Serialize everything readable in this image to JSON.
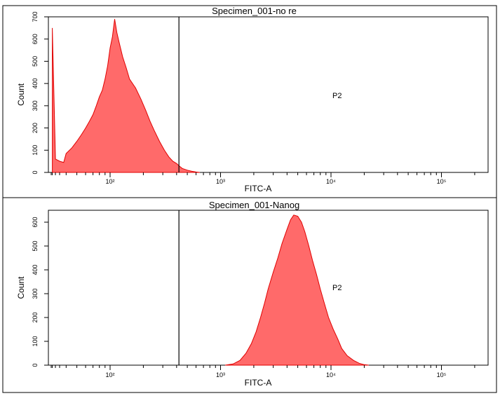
{
  "chart_data": [
    {
      "type": "area",
      "title": "Specimen_001-no re",
      "xlabel": "FITC-A",
      "ylabel": "Count",
      "x_scale": "log",
      "ylim": [
        0,
        700
      ],
      "y_ticks": [
        "0",
        "100",
        "200",
        "300",
        "400",
        "500",
        "600",
        "700"
      ],
      "x_tick_labels": [
        {
          "label": "10²",
          "value": 100
        },
        {
          "label": "10³",
          "value": 1000
        },
        {
          "label": "10⁴",
          "value": 10000
        },
        {
          "label": "10⁵",
          "value": 100000
        }
      ],
      "gate": {
        "label": "P2",
        "threshold": 420
      },
      "fill_color": "#ff6a6a",
      "stroke_color": "#e00000",
      "series": [
        {
          "values": [
            [
              30,
              650
            ],
            [
              32,
              60
            ],
            [
              35,
              50
            ],
            [
              38,
              45
            ],
            [
              40,
              85
            ],
            [
              45,
              110
            ],
            [
              50,
              140
            ],
            [
              55,
              170
            ],
            [
              60,
              200
            ],
            [
              65,
              230
            ],
            [
              70,
              260
            ],
            [
              75,
              300
            ],
            [
              80,
              340
            ],
            [
              85,
              370
            ],
            [
              90,
              420
            ],
            [
              95,
              480
            ],
            [
              100,
              560
            ],
            [
              105,
              610
            ],
            [
              110,
              690
            ],
            [
              115,
              630
            ],
            [
              120,
              590
            ],
            [
              130,
              520
            ],
            [
              140,
              470
            ],
            [
              150,
              420
            ],
            [
              170,
              380
            ],
            [
              190,
              330
            ],
            [
              210,
              280
            ],
            [
              230,
              230
            ],
            [
              250,
              190
            ],
            [
              280,
              140
            ],
            [
              310,
              100
            ],
            [
              340,
              70
            ],
            [
              370,
              50
            ],
            [
              400,
              40
            ],
            [
              420,
              30
            ],
            [
              450,
              18
            ],
            [
              500,
              10
            ],
            [
              550,
              5
            ],
            [
              600,
              2
            ],
            [
              650,
              0
            ]
          ]
        }
      ]
    },
    {
      "type": "area",
      "title": "Specimen_001-Nanog",
      "xlabel": "FITC-A",
      "ylabel": "Count",
      "x_scale": "log",
      "ylim": [
        0,
        650
      ],
      "y_ticks": [
        "0",
        "100",
        "200",
        "300",
        "400",
        "500",
        "600"
      ],
      "x_tick_labels": [
        {
          "label": "10²",
          "value": 100
        },
        {
          "label": "10³",
          "value": 1000
        },
        {
          "label": "10⁴",
          "value": 10000
        },
        {
          "label": "10⁵",
          "value": 100000
        }
      ],
      "gate": {
        "label": "P2",
        "threshold": 420
      },
      "fill_color": "#ff6a6a",
      "stroke_color": "#e00000",
      "series": [
        {
          "values": [
            [
              1100,
              0
            ],
            [
              1300,
              5
            ],
            [
              1500,
              20
            ],
            [
              1700,
              50
            ],
            [
              1900,
              90
            ],
            [
              2100,
              140
            ],
            [
              2300,
              200
            ],
            [
              2500,
              260
            ],
            [
              2700,
              320
            ],
            [
              3000,
              390
            ],
            [
              3300,
              450
            ],
            [
              3600,
              510
            ],
            [
              4000,
              570
            ],
            [
              4300,
              610
            ],
            [
              4600,
              630
            ],
            [
              5000,
              625
            ],
            [
              5400,
              600
            ],
            [
              5800,
              560
            ],
            [
              6300,
              500
            ],
            [
              6800,
              440
            ],
            [
              7400,
              380
            ],
            [
              8000,
              320
            ],
            [
              8700,
              260
            ],
            [
              9500,
              200
            ],
            [
              10500,
              150
            ],
            [
              11500,
              110
            ],
            [
              12500,
              70
            ],
            [
              14000,
              40
            ],
            [
              16000,
              20
            ],
            [
              18000,
              8
            ],
            [
              20000,
              2
            ],
            [
              22000,
              0
            ]
          ]
        }
      ]
    }
  ]
}
